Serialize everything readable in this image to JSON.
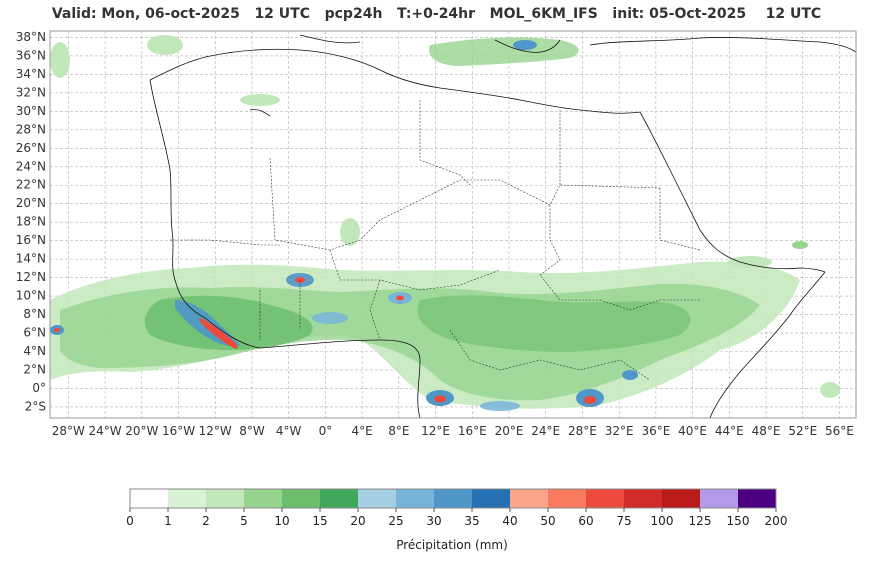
{
  "title": "Valid: Mon, 06-oct-2025   12 UTC   pcp24h   T:+0-24hr   MOL_6KM_IFS   init: 05-Oct-2025    12 UTC",
  "map": {
    "lat_labels": [
      "38°N",
      "36°N",
      "34°N",
      "32°N",
      "30°N",
      "28°N",
      "26°N",
      "24°N",
      "22°N",
      "20°N",
      "18°N",
      "16°N",
      "14°N",
      "12°N",
      "10°N",
      "8°N",
      "6°N",
      "4°N",
      "2°N",
      "0°",
      "2°S"
    ],
    "lon_labels": [
      "28°W",
      "24°W",
      "20°W",
      "16°W",
      "12°W",
      "8°W",
      "4°W",
      "0°",
      "4°E",
      "8°E",
      "12°E",
      "16°E",
      "20°E",
      "24°E",
      "28°E",
      "32°E",
      "36°E",
      "40°E",
      "44°E",
      "48°E",
      "52°E",
      "56°E"
    ]
  },
  "colorbar": {
    "label": "Précipitation (mm)",
    "ticks": [
      "0",
      "1",
      "2",
      "5",
      "10",
      "15",
      "20",
      "25",
      "30",
      "35",
      "40",
      "50",
      "60",
      "75",
      "100",
      "125",
      "150",
      "200"
    ],
    "colors": [
      "#ffffff",
      "#d9f1d4",
      "#c2e7bb",
      "#96d48f",
      "#6cbd6e",
      "#40a85a",
      "#a6cfe3",
      "#78b4d9",
      "#4f97c9",
      "#2670b4",
      "#fba68a",
      "#f87a5f",
      "#ec4a3c",
      "#d22b2a",
      "#ba1a1a",
      "#b39ae9",
      "#4b0082"
    ]
  }
}
